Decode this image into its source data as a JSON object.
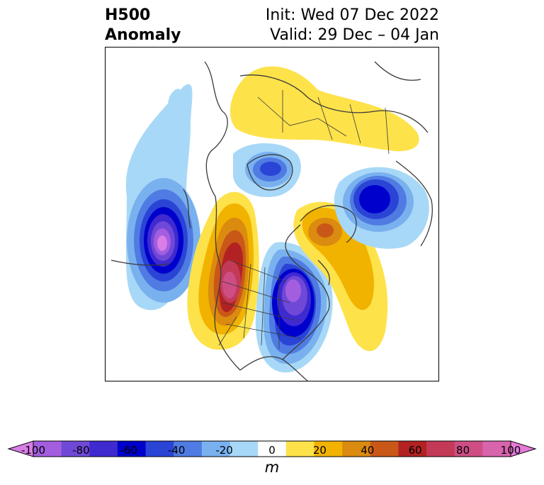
{
  "title": {
    "left_line1": "H500",
    "left_line2": "Anomaly",
    "right_line1": "Init: Wed 07 Dec 2022",
    "right_line2": "Valid: 29 Dec – 04 Jan"
  },
  "colorbar": {
    "unit": "m",
    "ticks": [
      "-100",
      "-80",
      "-60",
      "-40",
      "-20",
      "0",
      "20",
      "40",
      "60",
      "80",
      "100"
    ],
    "colors": [
      "#d97ee6",
      "#a35ee0",
      "#7048d8",
      "#3f2ad0",
      "#0000cd",
      "#2a44d6",
      "#4f7be3",
      "#79b1ef",
      "#a8d8f7",
      "#ffffff",
      "#fde24a",
      "#f1b300",
      "#db8b10",
      "#c95818",
      "#b22222",
      "#c33a58",
      "#ce4e84",
      "#d864ad",
      "#e57bd8"
    ],
    "extend": "both"
  },
  "map": {
    "projection": "polar-stereographic North America",
    "features": [
      "coastlines",
      "country borders",
      "state/province borders"
    ]
  }
}
